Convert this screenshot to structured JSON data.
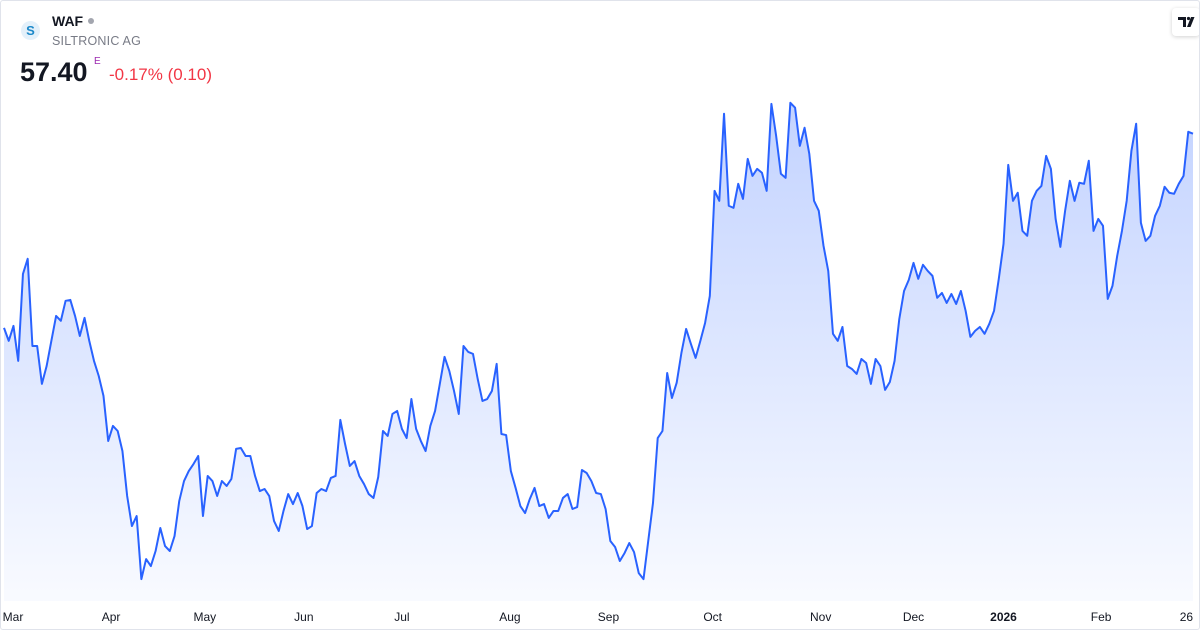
{
  "header": {
    "logo_text": "S",
    "symbol": "WAF",
    "name": "SILTRONIC AG",
    "price": "57.40",
    "flag": "E",
    "change": "-0.17% (0.10)"
  },
  "chart_data": {
    "type": "area",
    "color": "#2962ff",
    "ylim": [
      31,
      60
    ],
    "xlim": [
      0,
      251
    ],
    "xticks": [
      {
        "value": 1.9,
        "label": "Mar"
      },
      {
        "value": 22.6,
        "label": "Apr"
      },
      {
        "value": 42.4,
        "label": "May"
      },
      {
        "value": 63.3,
        "label": "Jun"
      },
      {
        "value": 84,
        "label": "Jul"
      },
      {
        "value": 106.8,
        "label": "Aug"
      },
      {
        "value": 127.6,
        "label": "Sep"
      },
      {
        "value": 149.6,
        "label": "Oct"
      },
      {
        "value": 172.4,
        "label": "Nov"
      },
      {
        "value": 192,
        "label": "Dec"
      },
      {
        "value": 211,
        "label": "2026"
      },
      {
        "value": 231.6,
        "label": "Feb"
      },
      {
        "value": 249.6,
        "label": "26"
      }
    ],
    "values": [
      46.29,
      45.55,
      46.4,
      44.41,
      49.36,
      50.22,
      45.26,
      45.26,
      43.1,
      44.12,
      45.55,
      46.97,
      46.69,
      47.83,
      47.88,
      46.97,
      45.83,
      46.86,
      45.55,
      44.41,
      43.55,
      42.42,
      39.85,
      40.71,
      40.42,
      39.28,
      36.72,
      35.01,
      35.58,
      31.99,
      33.13,
      32.73,
      33.59,
      34.9,
      33.87,
      33.59,
      34.44,
      36.44,
      37.57,
      38.14,
      38.54,
      39.0,
      35.58,
      37.86,
      37.57,
      36.72,
      37.57,
      37.29,
      37.69,
      39.4,
      39.45,
      39.0,
      39.0,
      37.86,
      37.0,
      37.12,
      36.72,
      35.3,
      34.73,
      35.87,
      36.83,
      36.26,
      36.89,
      36.15,
      34.84,
      35.01,
      36.89,
      37.12,
      37.0,
      37.75,
      37.86,
      41.05,
      39.68,
      38.43,
      38.71,
      37.86,
      37.4,
      36.83,
      36.61,
      37.8,
      40.42,
      40.14,
      41.39,
      41.56,
      40.54,
      40.02,
      42.24,
      40.54,
      39.85,
      39.28,
      40.71,
      41.56,
      43.1,
      44.64,
      43.84,
      42.7,
      41.39,
      45.26,
      44.92,
      44.81,
      43.38,
      42.13,
      42.24,
      42.7,
      44.24,
      40.25,
      40.19,
      38.14,
      37.18,
      36.15,
      35.75,
      36.55,
      37.18,
      36.15,
      36.26,
      35.47,
      35.87,
      35.87,
      36.61,
      36.83,
      35.98,
      36.09,
      38.2,
      38.03,
      37.57,
      36.89,
      36.83,
      35.98,
      34.16,
      33.82,
      33.02,
      33.47,
      34.04,
      33.53,
      32.33,
      31.99,
      34.16,
      36.32,
      40.02,
      40.42,
      43.72,
      42.3,
      43.16,
      44.86,
      46.23,
      45.38,
      44.58,
      45.55,
      46.57,
      48.11,
      54.09,
      53.52,
      58.48,
      53.24,
      53.12,
      54.49,
      53.63,
      55.91,
      54.94,
      55.34,
      55.12,
      54.09,
      59.04,
      57.22,
      55.06,
      54.83,
      59.1,
      58.82,
      56.65,
      57.68,
      56.2,
      53.52,
      52.95,
      50.96,
      49.53,
      45.95,
      45.55,
      46.34,
      44.12,
      43.95,
      43.67,
      44.52,
      44.29,
      43.1,
      44.52,
      44.12,
      42.76,
      43.21,
      44.41,
      46.8,
      48.39,
      49.02,
      49.99,
      49.08,
      49.88,
      49.53,
      49.25,
      48.0,
      48.28,
      47.71,
      48.22,
      47.65,
      48.39,
      47.26,
      45.78,
      46.12,
      46.34,
      45.95,
      46.52,
      47.26,
      49.08,
      51.07,
      55.57,
      53.52,
      53.98,
      51.81,
      51.53,
      53.52,
      54.09,
      54.37,
      56.08,
      55.34,
      52.49,
      50.9,
      52.95,
      54.66,
      53.52,
      54.55,
      54.49,
      55.8,
      51.81,
      52.49,
      52.1,
      47.94,
      48.68,
      50.39,
      51.81,
      53.52,
      56.37,
      57.91,
      52.27,
      51.24,
      51.53,
      52.67,
      53.24,
      54.32,
      53.98,
      53.92,
      54.49,
      54.94,
      57.45,
      57.34
    ]
  }
}
